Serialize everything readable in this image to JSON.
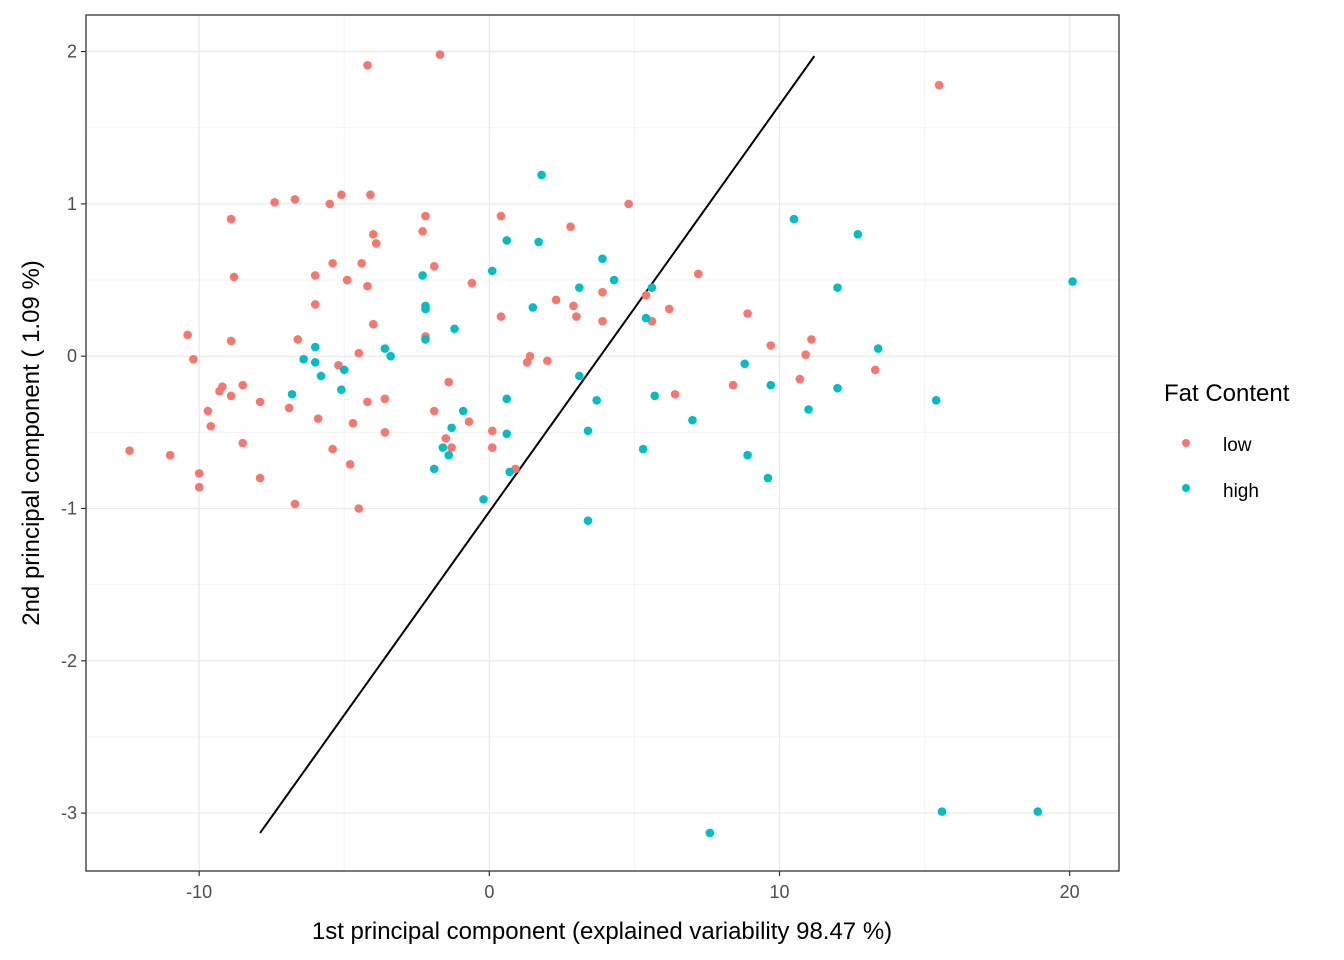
{
  "colors": {
    "low": "#F8766D",
    "high": "#00BFC4",
    "grid_major": "#EBEBEB",
    "grid_minor": "#F3F3F3",
    "panel_border": "#333333",
    "line": "#000000"
  },
  "chart_data": {
    "type": "scatter",
    "xlabel": "1st principal component (explained variability 98.47 %)",
    "ylabel": "2nd principal component ( 1.09 %)",
    "xlim": [
      -13.9,
      21.7
    ],
    "ylim": [
      -3.38,
      2.24
    ],
    "x_ticks": [
      -10,
      0,
      10,
      20
    ],
    "y_ticks": [
      -3,
      -2,
      -1,
      0,
      1,
      2
    ],
    "x_tick_labels": [
      "-10",
      "0",
      "10",
      "20"
    ],
    "y_tick_labels": [
      "-3",
      "-2",
      "-1",
      "0",
      "1",
      "2"
    ],
    "grid": true,
    "legend": {
      "title": "Fat Content",
      "position": "right",
      "entries": [
        {
          "key": "low",
          "label": "low"
        },
        {
          "key": "high",
          "label": "high"
        }
      ]
    },
    "line": {
      "x": [
        -7.9,
        11.2
      ],
      "y": [
        -3.13,
        1.97
      ]
    },
    "series": [
      {
        "name": "low",
        "points": [
          [
            -4.2,
            1.91
          ],
          [
            -1.7,
            1.98
          ],
          [
            15.5,
            1.78
          ],
          [
            -7.4,
            1.01
          ],
          [
            -6.7,
            1.03
          ],
          [
            -5.5,
            1.0
          ],
          [
            -5.1,
            1.06
          ],
          [
            -4.1,
            1.06
          ],
          [
            -2.3,
            0.82
          ],
          [
            -2.2,
            0.92
          ],
          [
            0.4,
            0.92
          ],
          [
            2.8,
            0.85
          ],
          [
            4.8,
            1.0
          ],
          [
            -8.9,
            0.9
          ],
          [
            -8.8,
            0.52
          ],
          [
            -4.0,
            0.8
          ],
          [
            -3.9,
            0.74
          ],
          [
            -6.0,
            0.53
          ],
          [
            -5.4,
            0.61
          ],
          [
            -4.9,
            0.5
          ],
          [
            -4.4,
            0.61
          ],
          [
            -4.2,
            0.46
          ],
          [
            -1.9,
            0.59
          ],
          [
            -0.6,
            0.48
          ],
          [
            2.3,
            0.37
          ],
          [
            2.9,
            0.33
          ],
          [
            3.0,
            0.26
          ],
          [
            3.9,
            0.42
          ],
          [
            5.4,
            0.4
          ],
          [
            -6.0,
            0.34
          ],
          [
            -6.6,
            0.11
          ],
          [
            -4.0,
            0.21
          ],
          [
            -2.2,
            0.13
          ],
          [
            0.4,
            0.26
          ],
          [
            3.9,
            0.23
          ],
          [
            5.6,
            0.23
          ],
          [
            6.2,
            0.31
          ],
          [
            7.2,
            0.54
          ],
          [
            8.9,
            0.28
          ],
          [
            9.7,
            0.07
          ],
          [
            10.9,
            0.01
          ],
          [
            11.1,
            0.11
          ],
          [
            13.3,
            -0.09
          ],
          [
            10.7,
            -0.15
          ],
          [
            8.4,
            -0.19
          ],
          [
            6.4,
            -0.25
          ],
          [
            -10.4,
            0.14
          ],
          [
            -10.2,
            -0.02
          ],
          [
            -8.9,
            0.1
          ],
          [
            -5.2,
            -0.06
          ],
          [
            -4.5,
            0.02
          ],
          [
            1.3,
            -0.04
          ],
          [
            1.4,
            0.0
          ],
          [
            2.0,
            -0.03
          ],
          [
            -9.3,
            -0.23
          ],
          [
            -9.2,
            -0.2
          ],
          [
            -8.9,
            -0.26
          ],
          [
            -8.5,
            -0.19
          ],
          [
            -7.9,
            -0.3
          ],
          [
            -6.9,
            -0.34
          ],
          [
            -5.9,
            -0.41
          ],
          [
            -4.2,
            -0.3
          ],
          [
            -3.6,
            -0.28
          ],
          [
            -3.6,
            -0.5
          ],
          [
            -4.7,
            -0.44
          ],
          [
            -1.9,
            -0.36
          ],
          [
            -1.4,
            -0.17
          ],
          [
            -0.7,
            -0.43
          ],
          [
            -9.7,
            -0.36
          ],
          [
            -9.6,
            -0.46
          ],
          [
            -8.5,
            -0.57
          ],
          [
            -1.5,
            -0.54
          ],
          [
            -1.3,
            -0.6
          ],
          [
            0.1,
            -0.49
          ],
          [
            0.1,
            -0.6
          ],
          [
            -12.4,
            -0.62
          ],
          [
            -11.0,
            -0.65
          ],
          [
            -10.0,
            -0.77
          ],
          [
            -10.0,
            -0.86
          ],
          [
            -7.9,
            -0.8
          ],
          [
            -6.7,
            -0.97
          ],
          [
            -5.4,
            -0.61
          ],
          [
            -4.8,
            -0.71
          ],
          [
            -4.5,
            -1.0
          ],
          [
            0.9,
            -0.74
          ]
        ]
      },
      {
        "name": "high",
        "points": [
          [
            1.8,
            1.19
          ],
          [
            10.5,
            0.9
          ],
          [
            12.7,
            0.8
          ],
          [
            0.6,
            0.76
          ],
          [
            1.7,
            0.75
          ],
          [
            3.9,
            0.64
          ],
          [
            -2.3,
            0.53
          ],
          [
            0.1,
            0.56
          ],
          [
            4.3,
            0.5
          ],
          [
            3.1,
            0.45
          ],
          [
            5.6,
            0.45
          ],
          [
            12.0,
            0.45
          ],
          [
            20.1,
            0.49
          ],
          [
            -2.2,
            0.33
          ],
          [
            -2.2,
            0.31
          ],
          [
            1.5,
            0.32
          ],
          [
            5.4,
            0.25
          ],
          [
            -1.2,
            0.18
          ],
          [
            -2.2,
            0.11
          ],
          [
            -6.0,
            0.06
          ],
          [
            -3.6,
            0.05
          ],
          [
            -3.4,
            0.0
          ],
          [
            -6.4,
            -0.02
          ],
          [
            -6.0,
            -0.04
          ],
          [
            -5.0,
            -0.09
          ],
          [
            -5.8,
            -0.13
          ],
          [
            13.4,
            0.05
          ],
          [
            8.8,
            -0.05
          ],
          [
            3.1,
            -0.13
          ],
          [
            -5.1,
            -0.22
          ],
          [
            -6.8,
            -0.25
          ],
          [
            5.7,
            -0.26
          ],
          [
            9.7,
            -0.19
          ],
          [
            12.0,
            -0.21
          ],
          [
            15.4,
            -0.29
          ],
          [
            0.6,
            -0.28
          ],
          [
            3.7,
            -0.29
          ],
          [
            11.0,
            -0.35
          ],
          [
            7.0,
            -0.42
          ],
          [
            -0.9,
            -0.36
          ],
          [
            -1.3,
            -0.47
          ],
          [
            0.6,
            -0.51
          ],
          [
            3.4,
            -0.49
          ],
          [
            -1.6,
            -0.6
          ],
          [
            -1.4,
            -0.65
          ],
          [
            5.3,
            -0.61
          ],
          [
            8.9,
            -0.65
          ],
          [
            -1.9,
            -0.74
          ],
          [
            0.7,
            -0.76
          ],
          [
            9.6,
            -0.8
          ],
          [
            -0.2,
            -0.94
          ],
          [
            3.4,
            -1.08
          ],
          [
            7.6,
            -3.13
          ],
          [
            15.6,
            -2.99
          ],
          [
            18.9,
            -2.99
          ]
        ]
      }
    ]
  }
}
